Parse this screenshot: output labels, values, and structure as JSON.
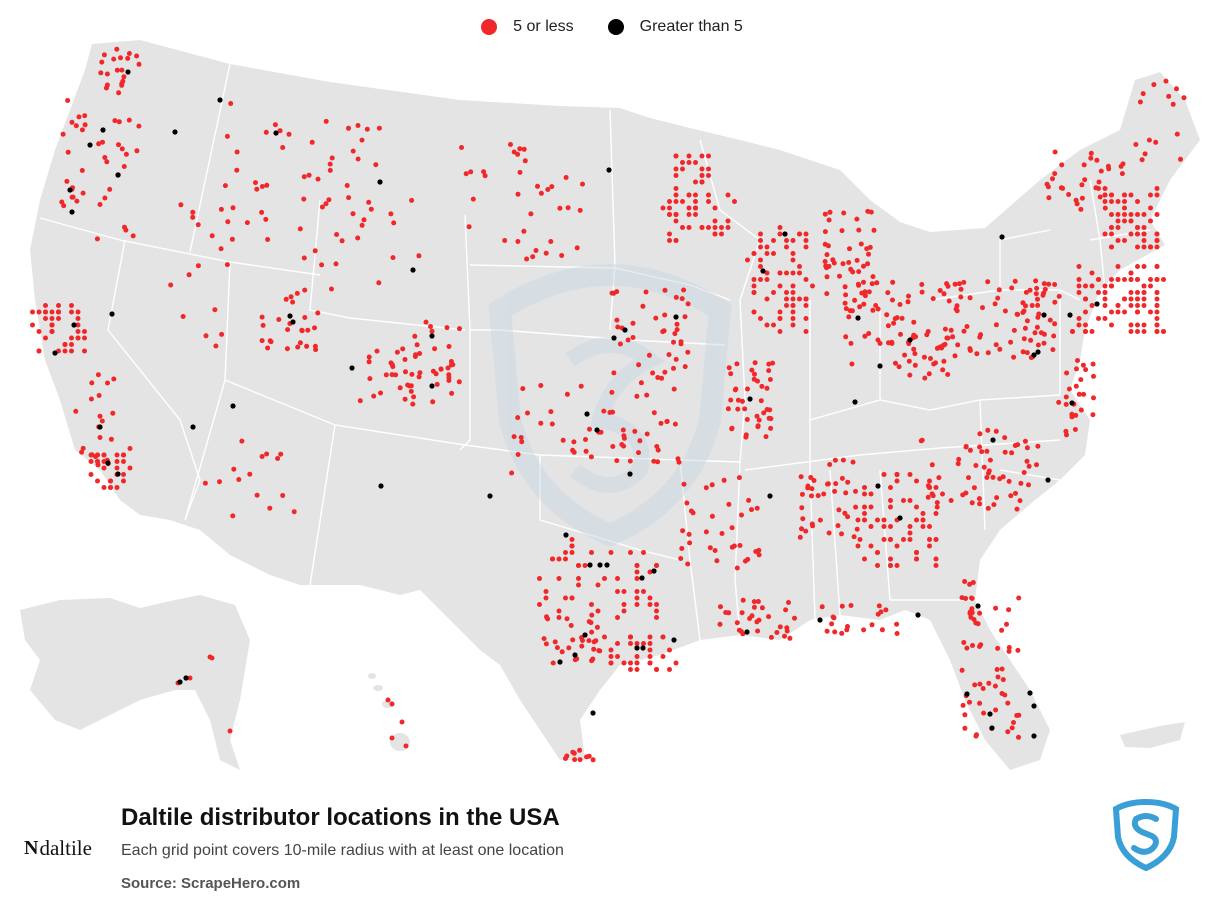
{
  "legend": {
    "items": [
      {
        "label": "5 or less",
        "color": "#f0282a"
      },
      {
        "label": "Greater than 5",
        "color": "#000000"
      }
    ]
  },
  "title": "Daltile distributor locations in the USA",
  "subtitle": "Each grid point covers 10-mile radius with at least one location",
  "source": "Source: ScrapeHero.com",
  "brand": {
    "logo_text": "daltile",
    "logo_mark": "N"
  },
  "colors": {
    "land": "#e4e4e4",
    "border": "#ffffff",
    "low": "#f0282a",
    "high": "#000000",
    "watermark": "#c9d8e3",
    "scrapehero": "#3a9fd6"
  },
  "icons": {
    "scrapehero": "scrapehero-shield-icon"
  }
}
